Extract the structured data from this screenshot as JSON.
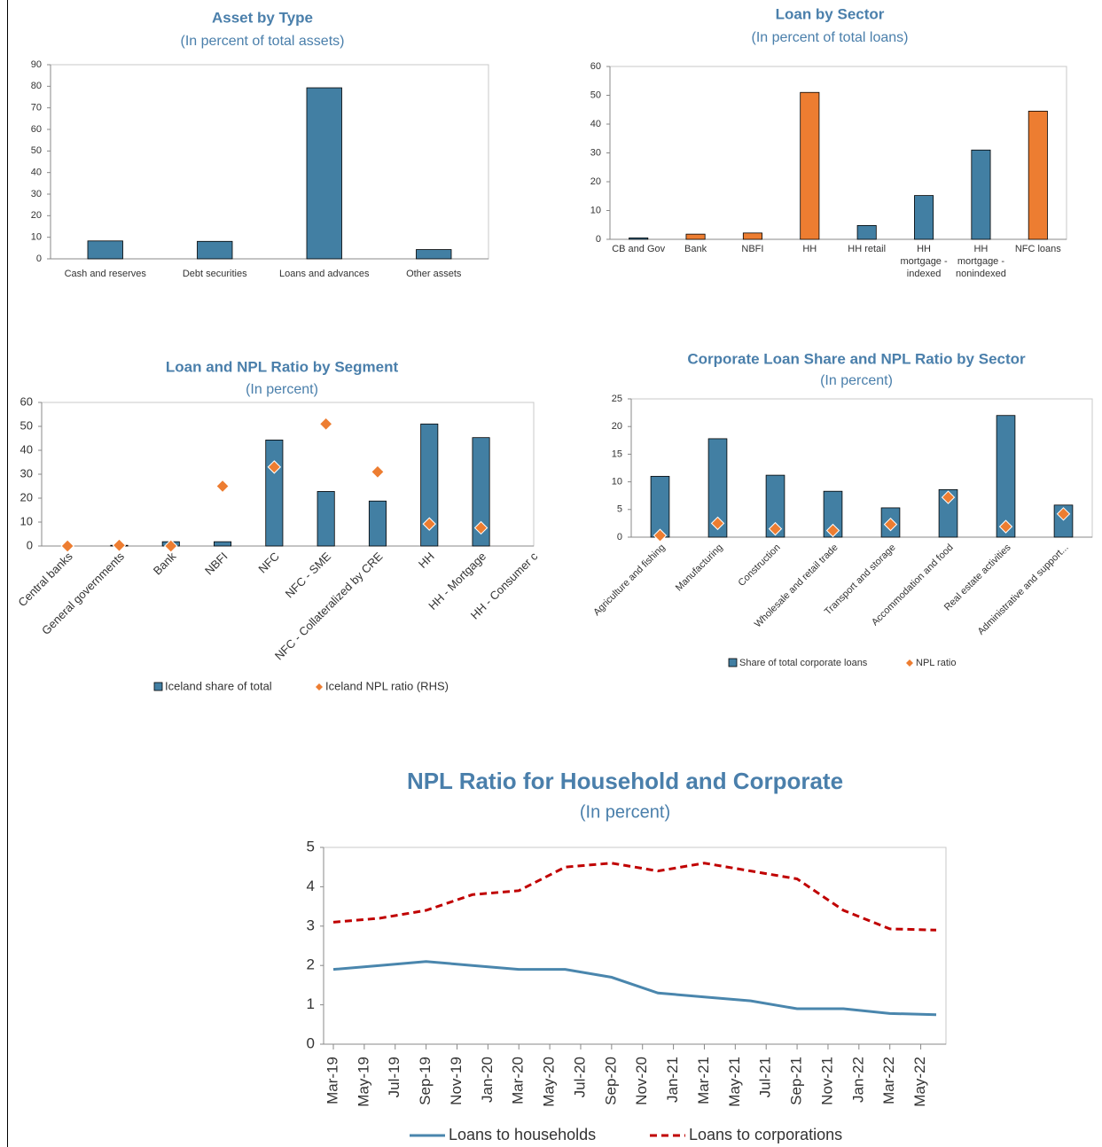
{
  "chart_data": [
    {
      "type": "bar",
      "title": "Asset by Type",
      "subtitle": "(In percent of total assets)",
      "categories": [
        "Cash and reserves",
        "Debt securities",
        "Loans and advances",
        "Other assets"
      ],
      "values": [
        8.3,
        8.1,
        79.3,
        4.3
      ],
      "color": "#427fa3",
      "ylim": [
        0,
        90
      ],
      "yticks": [
        0,
        10,
        20,
        30,
        40,
        50,
        60,
        70,
        80,
        90
      ]
    },
    {
      "type": "bar",
      "title": "Loan by Sector",
      "subtitle": "(In percent of total loans)",
      "categories": [
        "CB and Gov",
        "Bank",
        "NBFI",
        "HH",
        "HH retail",
        "HH mortgage - indexed",
        "HH mortgage - nonindexed",
        "NFC loans"
      ],
      "values": [
        0.5,
        1.8,
        2.2,
        51,
        4.8,
        15.2,
        31,
        44.5
      ],
      "colors": [
        "#427fa3",
        "#ed7d31",
        "#ed7d31",
        "#ed7d31",
        "#427fa3",
        "#427fa3",
        "#427fa3",
        "#ed7d31"
      ],
      "ylim": [
        0,
        60
      ],
      "yticks": [
        0,
        10,
        20,
        30,
        40,
        50,
        60
      ]
    },
    {
      "type": "combo",
      "title": "Loan and NPL Ratio by Segment",
      "subtitle": "(In percent)",
      "categories": [
        "Central banks",
        "General governments",
        "Bank",
        "NBFI",
        "NFC",
        "NFC - SME",
        "NFC - Collateralized by CRE",
        "HH",
        "HH - Mortgage",
        "HH - Consumer c"
      ],
      "series": [
        {
          "name": "Iceland share of total",
          "type": "bar",
          "color": "#427fa3",
          "values": [
            0,
            0.3,
            1.8,
            1.8,
            44.3,
            22.8,
            18.8,
            51,
            45.3,
            null
          ]
        },
        {
          "name": "Iceland NPL ratio (RHS)",
          "type": "scatter",
          "color": "#ed7d31",
          "values": [
            0,
            0.3,
            0,
            25,
            33,
            51,
            31,
            9.2,
            7.6,
            null
          ]
        }
      ],
      "ylim": [
        0,
        60
      ],
      "yticks": [
        0,
        10,
        20,
        30,
        40,
        50,
        60
      ]
    },
    {
      "type": "combo",
      "title": "Corporate Loan Share and NPL Ratio by Sector",
      "subtitle": "(In percent)",
      "categories": [
        "Agriculture and fishing",
        "Manufacturing",
        "Construction",
        "Wholesale and retail trade",
        "Transport and storage",
        "Accommodation and food",
        "Real estate activities",
        "Administrative and support..."
      ],
      "series": [
        {
          "name": "Share of total corporate loans",
          "type": "bar",
          "color": "#427fa3",
          "values": [
            11,
            17.8,
            11.2,
            8.3,
            5.3,
            8.6,
            22,
            5.8
          ]
        },
        {
          "name": "NPL ratio",
          "type": "scatter",
          "color": "#ed7d31",
          "values": [
            0.3,
            2.5,
            1.5,
            1.2,
            2.3,
            7.2,
            1.9,
            4.2
          ]
        }
      ],
      "ylim": [
        0,
        25
      ],
      "yticks": [
        0,
        5,
        10,
        15,
        20,
        25
      ]
    },
    {
      "type": "line",
      "title": "NPL Ratio for Household and Corporate",
      "subtitle": "(In percent)",
      "x": [
        "2019-03",
        "2019-06",
        "2019-09",
        "2019-12",
        "2020-03",
        "2020-06",
        "2020-09",
        "2020-12",
        "2021-03",
        "2021-06",
        "2021-09",
        "2021-12",
        "2022-03",
        "2022-06"
      ],
      "series": [
        {
          "name": "Loans to households",
          "color": "#4a86ad",
          "dash": false,
          "values": [
            1.9,
            2.0,
            2.1,
            2.0,
            1.9,
            1.9,
            1.7,
            1.3,
            1.2,
            1.1,
            0.9,
            0.9,
            0.78,
            0.75
          ]
        },
        {
          "name": "Loans to corporations",
          "color": "#c00000",
          "dash": true,
          "values": [
            3.1,
            3.2,
            3.4,
            3.8,
            3.9,
            4.5,
            4.6,
            4.4,
            4.6,
            4.4,
            4.2,
            3.4,
            2.93,
            2.9
          ]
        }
      ],
      "xlim": [
        "2019-03",
        "2022-06"
      ],
      "xticks": [
        {
          "value": "2019-03",
          "label": "Mar-19"
        },
        {
          "value": "2019-05",
          "label": "May-19"
        },
        {
          "value": "2019-07",
          "label": "Jul-19"
        },
        {
          "value": "2019-09",
          "label": "Sep-19"
        },
        {
          "value": "2019-11",
          "label": "Nov-19"
        },
        {
          "value": "2020-01",
          "label": "Jan-20"
        },
        {
          "value": "2020-03",
          "label": "Mar-20"
        },
        {
          "value": "2020-05",
          "label": "May-20"
        },
        {
          "value": "2020-07",
          "label": "Jul-20"
        },
        {
          "value": "2020-09",
          "label": "Sep-20"
        },
        {
          "value": "2020-11",
          "label": "Nov-20"
        },
        {
          "value": "2021-01",
          "label": "Jan-21"
        },
        {
          "value": "2021-03",
          "label": "Mar-21"
        },
        {
          "value": "2021-05",
          "label": "May-21"
        },
        {
          "value": "2021-07",
          "label": "Jul-21"
        },
        {
          "value": "2021-09",
          "label": "Sep-21"
        },
        {
          "value": "2021-11",
          "label": "Nov-21"
        },
        {
          "value": "2022-01",
          "label": "Jan-22"
        },
        {
          "value": "2022-03",
          "label": "Mar-22"
        },
        {
          "value": "2022-05",
          "label": "May-22"
        }
      ],
      "ylim": [
        0,
        5
      ],
      "yticks": [
        0,
        1,
        2,
        3,
        4,
        5
      ]
    }
  ]
}
